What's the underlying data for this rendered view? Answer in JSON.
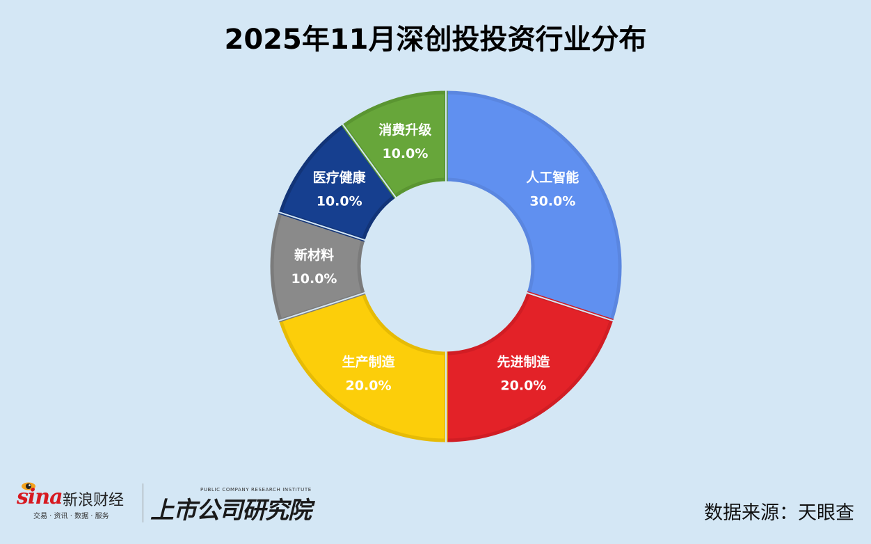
{
  "chart_data": {
    "type": "pie",
    "title": "2025年11月深创投投资行业分布",
    "categories": [
      "人工智能",
      "先进制造",
      "生产制造",
      "新材料",
      "医疗健康",
      "消费升级"
    ],
    "values": [
      30.0,
      20.0,
      20.0,
      10.0,
      10.0,
      10.0
    ],
    "value_labels": [
      "30.0%",
      "20.0%",
      "20.0%",
      "10.0%",
      "10.0%",
      "10.0%"
    ],
    "colors": [
      "#6090f0",
      "#e32228",
      "#fcce0a",
      "#8a8a8a",
      "#163f8f",
      "#67a63a"
    ],
    "stroke_colors": [
      "#5a86e0",
      "#d11d24",
      "#e6bb05",
      "#7b7b7b",
      "#123478",
      "#5a9531"
    ],
    "donut": true,
    "legend": "none",
    "start_angle_deg": 0,
    "direction": "clockwise"
  },
  "footer": {
    "source": "数据来源：天眼查",
    "sina_logo_word": "sina",
    "sina_logo_cn": "新浪财经",
    "sina_logo_sub": "交易 · 资讯 · 数据 · 服务",
    "institute_en": "PUBLIC COMPANY RESEARCH INSTITUTE",
    "institute_cn": "上市公司研究院"
  }
}
